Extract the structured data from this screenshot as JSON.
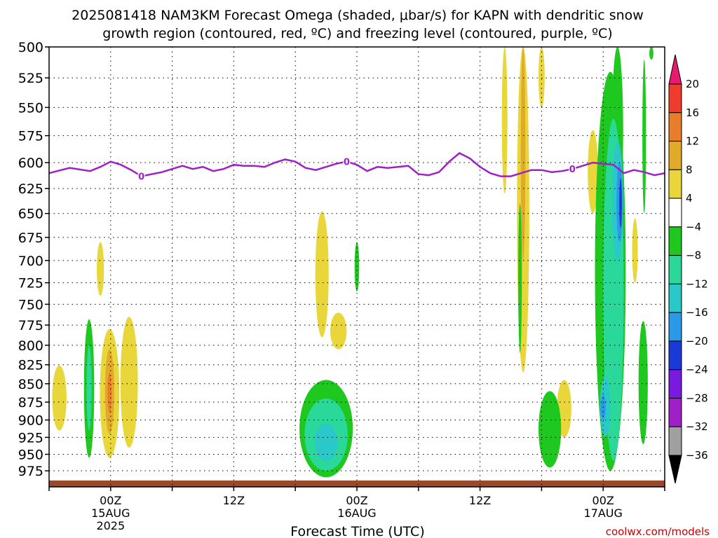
{
  "chart_data": {
    "type": "heatmap",
    "title_line1": "2025081418 NAM3KM Forecast Omega (shaded, μbar/s) for KAPN with dendritic snow",
    "title_line2": "growth region (contoured, red, ºC) and freezing level (contoured, purple, ºC)",
    "xlabel": "Forecast Time (UTC)",
    "credit": "coolwx.com/models",
    "y_axis": {
      "ticks": [
        500,
        525,
        550,
        575,
        600,
        625,
        650,
        675,
        700,
        725,
        750,
        775,
        800,
        825,
        850,
        875,
        900,
        925,
        950,
        975
      ],
      "range": [
        500,
        1000
      ],
      "units": "mb",
      "scale": "log-pressure",
      "inverted": true
    },
    "x_axis": {
      "range_hours": [
        0,
        60
      ],
      "ticks": [
        {
          "hour": 6,
          "line1": "00Z",
          "line2": "15AUG",
          "line3": "2025"
        },
        {
          "hour": 18,
          "line1": "12Z",
          "line2": "",
          "line3": ""
        },
        {
          "hour": 30,
          "line1": "00Z",
          "line2": "16AUG",
          "line3": ""
        },
        {
          "hour": 42,
          "line1": "12Z",
          "line2": "",
          "line3": ""
        },
        {
          "hour": 54,
          "line1": "00Z",
          "line2": "17AUG",
          "line3": ""
        }
      ]
    },
    "grid": true,
    "colorbar": {
      "labels": [
        "20",
        "16",
        "12",
        "8",
        "4",
        "−4",
        "−8",
        "−12",
        "−16",
        "−20",
        "−24",
        "−28",
        "−32",
        "−36"
      ],
      "colors": [
        "#e8196e",
        "#f03c2b",
        "#e87e2a",
        "#e2aa2a",
        "#e8d63a",
        "#ffffff",
        "#1ec81e",
        "#2ad89a",
        "#2ac8c8",
        "#2a9ae8",
        "#1a3ad8",
        "#7a1ae0",
        "#a020c8",
        "#a0a0a0",
        "#000000"
      ]
    },
    "freezing_level": {
      "color": "#a020c8",
      "label": "0",
      "points": [
        [
          0,
          610
        ],
        [
          2,
          605
        ],
        [
          4,
          608
        ],
        [
          5,
          604
        ],
        [
          6,
          599
        ],
        [
          7,
          602
        ],
        [
          8,
          607
        ],
        [
          9,
          613
        ],
        [
          10,
          611
        ],
        [
          11,
          609
        ],
        [
          12,
          606
        ],
        [
          13,
          603
        ],
        [
          14,
          606
        ],
        [
          15,
          604
        ],
        [
          16,
          608
        ],
        [
          17,
          606
        ],
        [
          18,
          602
        ],
        [
          19,
          603
        ],
        [
          20,
          603
        ],
        [
          21,
          604
        ],
        [
          22,
          600
        ],
        [
          23,
          597
        ],
        [
          24,
          599
        ],
        [
          25,
          605
        ],
        [
          26,
          607
        ],
        [
          27,
          604
        ],
        [
          28,
          601
        ],
        [
          29,
          599
        ],
        [
          30,
          602
        ],
        [
          31,
          608
        ],
        [
          32,
          604
        ],
        [
          33,
          605
        ],
        [
          34,
          604
        ],
        [
          35,
          603
        ],
        [
          36,
          611
        ],
        [
          37,
          612
        ],
        [
          38,
          609
        ],
        [
          39,
          599
        ],
        [
          40,
          591
        ],
        [
          41,
          596
        ],
        [
          42,
          604
        ],
        [
          43,
          610
        ],
        [
          44,
          613
        ],
        [
          45,
          613
        ],
        [
          46,
          610
        ],
        [
          47,
          607
        ],
        [
          48,
          607
        ],
        [
          49,
          609
        ],
        [
          50,
          608
        ],
        [
          51,
          606
        ],
        [
          52,
          603
        ],
        [
          53,
          600
        ],
        [
          54,
          601
        ],
        [
          55,
          602
        ],
        [
          56,
          610
        ],
        [
          57,
          607
        ],
        [
          58,
          609
        ],
        [
          59,
          612
        ],
        [
          60,
          610
        ]
      ],
      "label_hours": [
        9,
        29,
        51
      ]
    },
    "omega_regions": [
      {
        "level": "4",
        "color": "#e8d63a",
        "cx": 1.0,
        "p_top": 826,
        "p_bot": 915,
        "w": 1.4
      },
      {
        "level": "4",
        "color": "#e8d63a",
        "cx": 5.0,
        "p_top": 680,
        "p_bot": 740,
        "w": 0.7
      },
      {
        "level": "4",
        "color": "#e8d63a",
        "cx": 5.9,
        "p_top": 780,
        "p_bot": 955,
        "w": 1.9
      },
      {
        "level": "8",
        "color": "#e2aa2a",
        "cx": 5.9,
        "p_top": 805,
        "p_bot": 920,
        "w": 0.9
      },
      {
        "level": "12",
        "color": "#e87e2a",
        "cx": 5.9,
        "p_top": 835,
        "p_bot": 890,
        "w": 0.4
      },
      {
        "level": "4",
        "color": "#e8d63a",
        "cx": 7.8,
        "p_top": 765,
        "p_bot": 940,
        "w": 1.7
      },
      {
        "level": "-4",
        "color": "#1ec81e",
        "cx": 3.9,
        "p_top": 768,
        "p_bot": 955,
        "w": 1.0
      },
      {
        "level": "-8",
        "color": "#2ad89a",
        "cx": 3.9,
        "p_top": 800,
        "p_bot": 915,
        "w": 0.5
      },
      {
        "level": "4",
        "color": "#e8d63a",
        "cx": 26.6,
        "p_top": 648,
        "p_bot": 790,
        "w": 1.3
      },
      {
        "level": "4",
        "color": "#e8d63a",
        "cx": 28.2,
        "p_top": 760,
        "p_bot": 805,
        "w": 1.6
      },
      {
        "level": "-4",
        "color": "#1ec81e",
        "cx": 30.0,
        "p_top": 680,
        "p_bot": 735,
        "w": 0.45
      },
      {
        "level": "-4",
        "color": "#1ec81e",
        "cx": 27.0,
        "p_top": 845,
        "p_bot": 985,
        "w": 5.2
      },
      {
        "level": "-8",
        "color": "#2ad89a",
        "cx": 27.0,
        "p_top": 870,
        "p_bot": 975,
        "w": 4.2
      },
      {
        "level": "-12",
        "color": "#2ac8c8",
        "cx": 27.0,
        "p_top": 905,
        "p_bot": 960,
        "w": 2.2
      },
      {
        "level": "4",
        "color": "#e8d63a",
        "cx": 44.4,
        "p_top": 500,
        "p_bot": 630,
        "w": 0.55
      },
      {
        "level": "4",
        "color": "#e8d63a",
        "cx": 46.2,
        "p_top": 500,
        "p_bot": 835,
        "w": 1.2
      },
      {
        "level": "8",
        "color": "#e2aa2a",
        "cx": 46.2,
        "p_top": 500,
        "p_bot": 700,
        "w": 0.45
      },
      {
        "level": "4",
        "color": "#e8d63a",
        "cx": 48.0,
        "p_top": 500,
        "p_bot": 550,
        "w": 0.6
      },
      {
        "level": "-4",
        "color": "#1ec81e",
        "cx": 45.9,
        "p_top": 640,
        "p_bot": 810,
        "w": 0.35
      },
      {
        "level": "4",
        "color": "#e8d63a",
        "cx": 50.2,
        "p_top": 845,
        "p_bot": 925,
        "w": 1.4
      },
      {
        "level": "-4",
        "color": "#1ec81e",
        "cx": 48.8,
        "p_top": 860,
        "p_bot": 970,
        "w": 2.2
      },
      {
        "level": "4",
        "color": "#e8d63a",
        "cx": 53.0,
        "p_top": 570,
        "p_bot": 650,
        "w": 1.0
      },
      {
        "level": "-4",
        "color": "#1ec81e",
        "cx": 55.4,
        "p_top": 500,
        "p_bot": 650,
        "w": 1.1
      },
      {
        "level": "-4",
        "color": "#1ec81e",
        "cx": 54.7,
        "p_top": 520,
        "p_bot": 975,
        "w": 3.0
      },
      {
        "level": "-8",
        "color": "#2ad89a",
        "cx": 55.0,
        "p_top": 560,
        "p_bot": 960,
        "w": 2.0
      },
      {
        "level": "-12",
        "color": "#2ac8c8",
        "cx": 55.4,
        "p_top": 580,
        "p_bot": 700,
        "w": 1.1
      },
      {
        "level": "-16",
        "color": "#2a9ae8",
        "cx": 55.6,
        "p_top": 600,
        "p_bot": 680,
        "w": 0.6
      },
      {
        "level": "-20",
        "color": "#1a3ad8",
        "cx": 55.7,
        "p_top": 615,
        "p_bot": 665,
        "w": 0.25
      },
      {
        "level": "-12",
        "color": "#2ac8c8",
        "cx": 54.2,
        "p_top": 840,
        "p_bot": 925,
        "w": 1.0
      },
      {
        "level": "-16",
        "color": "#2a9ae8",
        "cx": 54.0,
        "p_top": 865,
        "p_bot": 900,
        "w": 0.5
      },
      {
        "level": "-4",
        "color": "#1ec81e",
        "cx": 57.9,
        "p_top": 770,
        "p_bot": 935,
        "w": 0.9
      },
      {
        "level": "4",
        "color": "#e8d63a",
        "cx": 57.1,
        "p_top": 655,
        "p_bot": 725,
        "w": 0.55
      },
      {
        "level": "-4",
        "color": "#1ec81e",
        "cx": 58.0,
        "p_top": 510,
        "p_bot": 650,
        "w": 0.35
      },
      {
        "level": "-4",
        "color": "#1ec81e",
        "cx": 58.7,
        "p_top": 500,
        "p_bot": 510,
        "w": 0.4
      }
    ],
    "ground": {
      "color": "#9a4a2c",
      "p_top": 990,
      "p_bot": 1000
    }
  }
}
